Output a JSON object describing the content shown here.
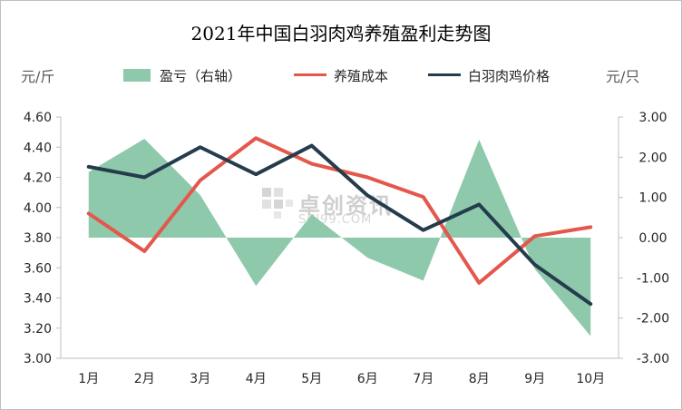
{
  "chart_data": {
    "type": "line",
    "title": "2021年中国白羽肉鸡养殖盈利走势图",
    "y_left_label": "元/斤",
    "y_right_label": "元/只",
    "categories": [
      "1月",
      "2月",
      "3月",
      "4月",
      "5月",
      "6月",
      "7月",
      "8月",
      "9月",
      "10月"
    ],
    "y_left_ticks": [
      "4.60",
      "4.40",
      "4.20",
      "4.00",
      "3.80",
      "3.60",
      "3.40",
      "3.20",
      "3.00"
    ],
    "y_right_ticks": [
      "3.00",
      "2.00",
      "1.00",
      "0.00",
      "-1.00",
      "-2.00",
      "-3.00"
    ],
    "y_left_range": [
      3.0,
      4.6
    ],
    "y_right_range": [
      -3.0,
      3.0
    ],
    "grid": false,
    "legend_position": "top",
    "series": [
      {
        "name": "盈亏（右轴）",
        "type": "area",
        "axis": "right",
        "color": "#8fc9ab",
        "values": [
          1.63,
          2.46,
          1.06,
          -1.2,
          0.58,
          -0.5,
          -1.07,
          2.44,
          -0.78,
          -2.45
        ]
      },
      {
        "name": "养殖成本",
        "type": "line",
        "axis": "left",
        "color": "#e4574d",
        "values": [
          3.96,
          3.71,
          4.18,
          4.46,
          4.29,
          4.2,
          4.07,
          3.5,
          3.81,
          3.87
        ]
      },
      {
        "name": "白羽肉鸡价格",
        "type": "line",
        "axis": "left",
        "color": "#243c4b",
        "values": [
          4.27,
          4.2,
          4.4,
          4.22,
          4.41,
          4.08,
          3.85,
          4.02,
          3.62,
          3.36
        ]
      }
    ]
  },
  "watermark": {
    "text": "卓创资讯",
    "sub": "SCI99.COM"
  }
}
